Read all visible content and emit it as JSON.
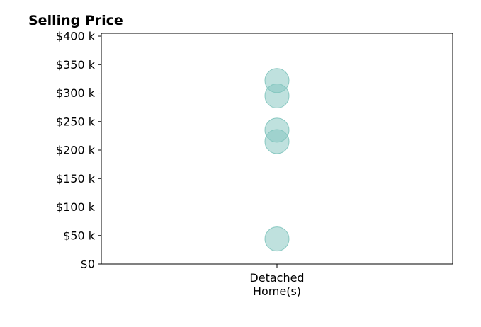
{
  "chart_data": {
    "type": "scatter",
    "title": "Selling Price",
    "xlabel": "",
    "ylabel": "",
    "categories": [
      [
        "Detached",
        "Home(s)"
      ]
    ],
    "y_ticks": [
      0,
      50000,
      100000,
      150000,
      200000,
      250000,
      300000,
      350000,
      400000
    ],
    "y_tick_labels": [
      "$0",
      "$50 k",
      "$100 k",
      "$150 k",
      "$200 k",
      "$250 k",
      "$300 k",
      "$350 k",
      "$400 k"
    ],
    "ylim": [
      0,
      405000
    ],
    "grid": false,
    "series": [
      {
        "category_index": 0,
        "values": [
          44000,
          215000,
          235000,
          295000,
          322000
        ]
      }
    ],
    "marker_color": "#7fc4bd",
    "marker_opacity": 0.5
  }
}
